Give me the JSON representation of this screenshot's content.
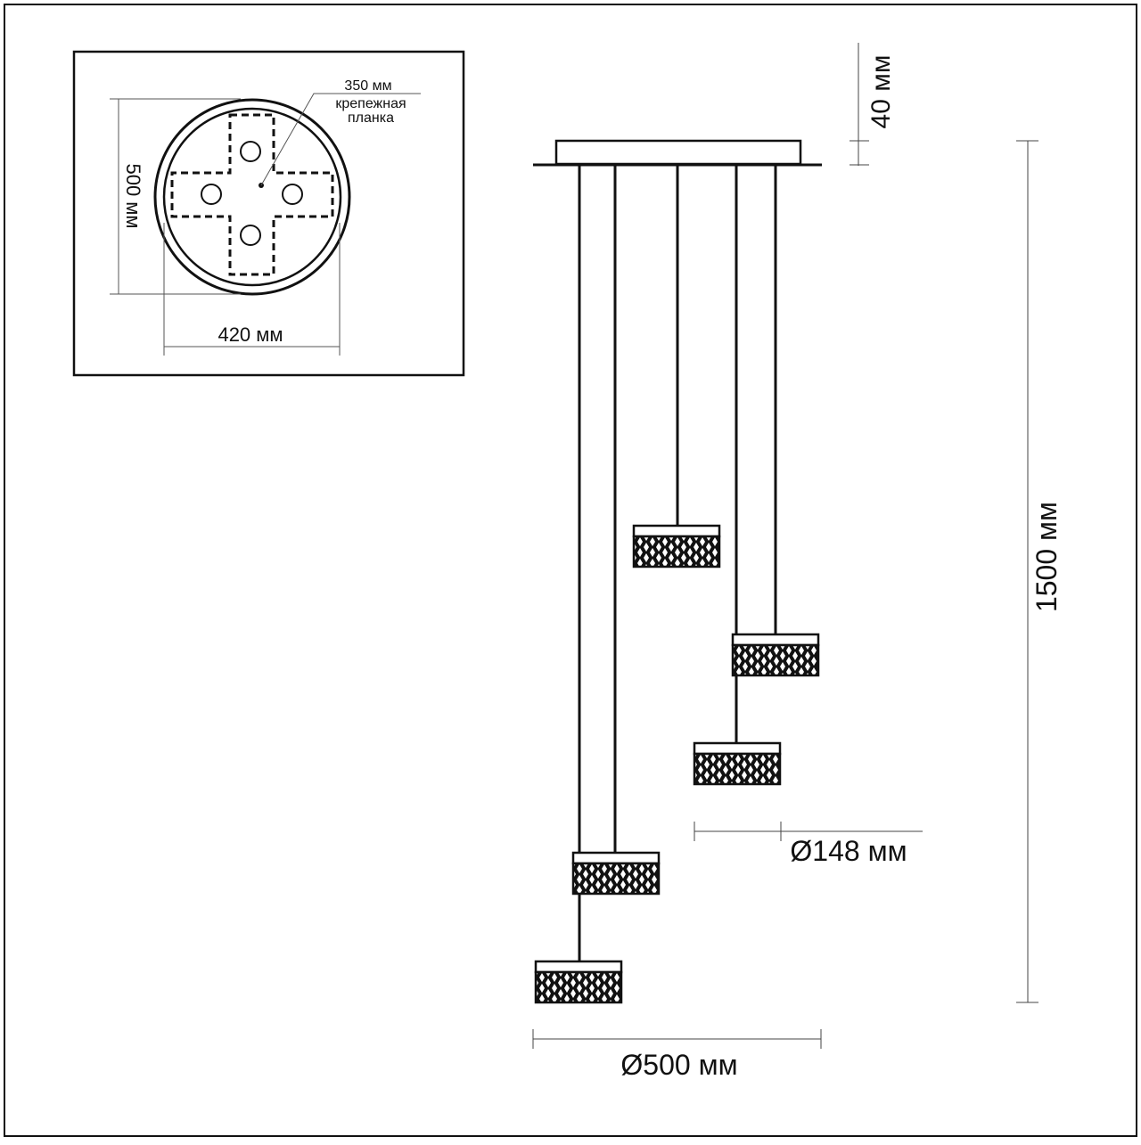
{
  "inset": {
    "plate_dim": "350 мм",
    "plate_label_1": "крепежная",
    "plate_label_2": "планка",
    "height_dim": "500 мм",
    "width_dim": "420 мм"
  },
  "main": {
    "canopy_height": "40 мм",
    "total_height": "1500 мм",
    "shade_diameter": "Ø148 мм",
    "overall_diameter": "Ø500 мм"
  },
  "colors": {
    "line": "#111111",
    "background": "#ffffff"
  }
}
